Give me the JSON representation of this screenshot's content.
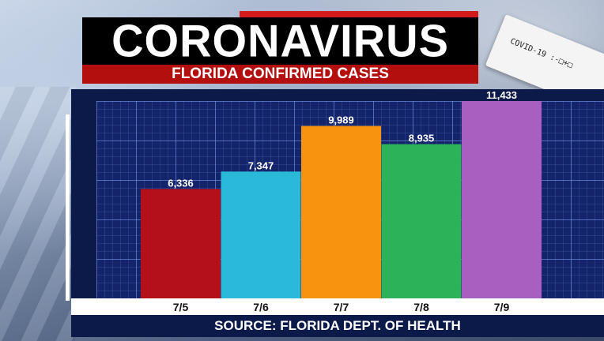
{
  "header": {
    "title": "CORONAVIRUS",
    "subtitle": "FLORIDA CONFIRMED CASES"
  },
  "background": {
    "test_strip_text": "COVID-19 :-□+□"
  },
  "footer": {
    "source": "SOURCE: FLORIDA DEPT. OF HEALTH"
  },
  "chart_data": {
    "type": "bar",
    "title": "FLORIDA CONFIRMED CASES",
    "categories": [
      "7/5",
      "7/6",
      "7/7",
      "7/8",
      "7/9"
    ],
    "values": [
      6336,
      7347,
      9989,
      8935,
      11433
    ],
    "value_labels": [
      "6,336",
      "7,347",
      "9,989",
      "8,935",
      "11,433"
    ],
    "colors": [
      "#b3101a",
      "#2bb9d9",
      "#f7930f",
      "#2cb35a",
      "#a95fc0"
    ],
    "ylim": [
      0,
      11433
    ],
    "grid": true,
    "xlabel": "",
    "ylabel": ""
  }
}
